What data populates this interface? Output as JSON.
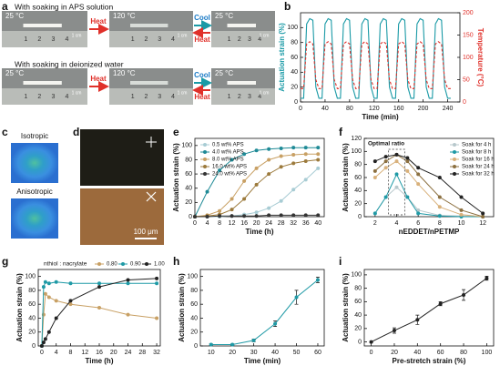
{
  "panel_labels": [
    "a",
    "b",
    "c",
    "d",
    "e",
    "f",
    "g",
    "h",
    "i"
  ],
  "panel_a": {
    "top_title": "With soaking in APS solution",
    "bottom_title": "With soaking in deionized water",
    "cold": "25 °C",
    "hot": "120 °C",
    "heat": "Heat",
    "cool": "Cool",
    "ruler": [
      "1",
      "2",
      "3",
      "4"
    ],
    "scale": "1 cm"
  },
  "panel_c": {
    "top": "Isotropic",
    "bottom": "Anisotropic"
  },
  "panel_d": {
    "scale": "100 μm"
  },
  "chart_data": [
    {
      "type": "line",
      "x_label": "Time (min)",
      "y_label": "Actuation strain (%)",
      "y2_label": "Temperature (°C)",
      "x": [
        0,
        5,
        10,
        15,
        20,
        25,
        30,
        35,
        40,
        45,
        50,
        55,
        60,
        65,
        70,
        75,
        80,
        85,
        90,
        95,
        100,
        105,
        110,
        115,
        120,
        125,
        130,
        135,
        140,
        145,
        150,
        155,
        160,
        165,
        170,
        175,
        180,
        185,
        190,
        195,
        200,
        205,
        210,
        215,
        220,
        225,
        230,
        235,
        240,
        245
      ],
      "xlim": [
        0,
        260
      ],
      "xticks": [
        0,
        40,
        80,
        120,
        160,
        200,
        240
      ],
      "ylim": [
        0,
        120
      ],
      "yticks": [
        0,
        20,
        40,
        60,
        80,
        100
      ],
      "y2lim": [
        0,
        200
      ],
      "y2ticks": [
        0,
        50,
        100,
        150,
        200
      ],
      "markers": false,
      "series": [
        {
          "name": "Actuation strain",
          "color": "#1a9aa6",
          "values": [
            5,
            5,
            105,
            112,
            110,
            20,
            5,
            5,
            105,
            112,
            110,
            20,
            5,
            5,
            105,
            112,
            110,
            20,
            5,
            5,
            105,
            112,
            110,
            20,
            5,
            5,
            105,
            112,
            110,
            20,
            5,
            5,
            105,
            112,
            110,
            20,
            5,
            5,
            105,
            112,
            110,
            20,
            5,
            5,
            105,
            112,
            110,
            20,
            5,
            5
          ]
        },
        {
          "name": "Temperature",
          "color": "#e0302a",
          "dash": true,
          "axis": "y2",
          "values": [
            30,
            30,
            130,
            135,
            130,
            50,
            30,
            30,
            130,
            135,
            130,
            50,
            30,
            30,
            130,
            135,
            130,
            50,
            30,
            30,
            130,
            135,
            130,
            50,
            30,
            30,
            130,
            135,
            130,
            50,
            30,
            30,
            130,
            135,
            130,
            50,
            30,
            30,
            130,
            135,
            130,
            50,
            30,
            30,
            130,
            135,
            130,
            50,
            30,
            30
          ]
        }
      ]
    },
    {
      "type": "line",
      "x_label": "Time (h)",
      "y_label": "Actuation strain (%)",
      "legend": "upper left",
      "markers": true,
      "x": [
        0,
        4,
        8,
        12,
        16,
        20,
        24,
        28,
        32,
        36,
        40
      ],
      "xlim": [
        0,
        42
      ],
      "xticks": [
        0,
        4,
        8,
        12,
        16,
        20,
        24,
        28,
        32,
        36,
        40
      ],
      "ylim": [
        0,
        110
      ],
      "yticks": [
        0,
        20,
        40,
        60,
        80,
        100
      ],
      "series": [
        {
          "name": "0.5 wt% APS",
          "color": "#a8ccd4",
          "values": [
            0,
            0,
            0,
            1,
            3,
            6,
            12,
            22,
            38,
            52,
            68
          ]
        },
        {
          "name": "4.0 wt% APS",
          "color": "#1f8a96",
          "values": [
            0,
            35,
            65,
            80,
            88,
            93,
            95,
            96,
            97,
            97,
            97
          ]
        },
        {
          "name": "8.0 wt% APS",
          "color": "#c8a064",
          "values": [
            0,
            2,
            8,
            25,
            50,
            68,
            80,
            85,
            87,
            88,
            88
          ]
        },
        {
          "name": "16.0 wt% APS",
          "color": "#9c7a3c",
          "values": [
            0,
            1,
            3,
            10,
            25,
            45,
            60,
            70,
            75,
            78,
            80
          ]
        },
        {
          "name": "24.0 wt% APS",
          "color": "#333333",
          "values": [
            0,
            0,
            1,
            1,
            1,
            1,
            2,
            2,
            2,
            2,
            2
          ]
        }
      ]
    },
    {
      "type": "line",
      "x_label": "nEDDET/nPETMP",
      "y_label": "Actuation strain (%)",
      "legend": "upper right",
      "markers": true,
      "annotation": "Optimal ratio",
      "x": [
        2,
        3,
        4,
        5,
        6,
        8,
        10,
        12
      ],
      "xlim": [
        1,
        13
      ],
      "xticks": [
        2,
        4,
        6,
        8,
        10,
        12
      ],
      "ylim": [
        0,
        120
      ],
      "yticks": [
        0,
        20,
        40,
        60,
        80,
        100,
        120
      ],
      "series": [
        {
          "name": "Soak for 4 h",
          "color": "#b8c8cc",
          "values": [
            5,
            30,
            45,
            30,
            10,
            2,
            1,
            0
          ]
        },
        {
          "name": "Soak for 8 h",
          "color": "#1f9aa6",
          "values": [
            5,
            30,
            65,
            30,
            5,
            1,
            0,
            0
          ]
        },
        {
          "name": "Soak for 16 h",
          "color": "#d8b07a",
          "values": [
            60,
            75,
            85,
            70,
            50,
            15,
            3,
            0
          ]
        },
        {
          "name": "Soak for 24 h",
          "color": "#8c7040",
          "values": [
            70,
            85,
            95,
            85,
            65,
            30,
            10,
            0
          ]
        },
        {
          "name": "Soak for 32 h",
          "color": "#222222",
          "values": [
            85,
            92,
            95,
            90,
            75,
            60,
            30,
            5
          ]
        }
      ]
    },
    {
      "type": "line",
      "x_label": "Time (h)",
      "y_label": "Actuation strain (%)",
      "legend": "upper center",
      "legend_title": "nthiol : nacrylate",
      "markers": true,
      "x": [
        0,
        0.5,
        1,
        2,
        4,
        8,
        16,
        24,
        32
      ],
      "xlim": [
        -1,
        33
      ],
      "xticks": [
        0,
        4,
        8,
        12,
        16,
        20,
        24,
        28,
        32
      ],
      "ylim": [
        0,
        110
      ],
      "yticks": [
        0,
        20,
        40,
        60,
        80,
        100
      ],
      "series": [
        {
          "name": "0.80",
          "color": "#c8a064",
          "values": [
            0,
            45,
            75,
            70,
            65,
            60,
            55,
            45,
            40
          ]
        },
        {
          "name": "0.90",
          "color": "#1f9aa6",
          "values": [
            0,
            85,
            92,
            90,
            92,
            90,
            90,
            90,
            90
          ]
        },
        {
          "name": "1.00",
          "color": "#222222",
          "values": [
            0,
            5,
            10,
            20,
            40,
            65,
            85,
            95,
            97
          ]
        }
      ]
    },
    {
      "type": "line",
      "x_label": "Time (min)",
      "y_label": "Actuation strain (%)",
      "markers": true,
      "x": [
        10,
        20,
        30,
        40,
        50,
        60
      ],
      "xlim": [
        5,
        63
      ],
      "xticks": [
        10,
        20,
        30,
        40,
        50,
        60
      ],
      "ylim": [
        0,
        110
      ],
      "yticks": [
        0,
        20,
        40,
        60,
        80,
        100
      ],
      "series": [
        {
          "name": "Actuation strain",
          "color": "#1f9aa6",
          "values": [
            2,
            2,
            8,
            32,
            70,
            95
          ],
          "errors": [
            1,
            1,
            2,
            4,
            10,
            4
          ]
        }
      ]
    },
    {
      "type": "line",
      "x_label": "Pre-stretch strain (%)",
      "y_label": "Actuation strain (%)",
      "markers": true,
      "x": [
        0,
        20,
        40,
        60,
        80,
        100
      ],
      "xlim": [
        -6,
        106
      ],
      "xticks": [
        0,
        20,
        40,
        60,
        80,
        100
      ],
      "ylim": [
        -6,
        108
      ],
      "yticks": [
        0,
        20,
        40,
        60,
        80,
        100
      ],
      "series": [
        {
          "name": "Actuation strain",
          "color": "#222222",
          "values": [
            0,
            17,
            33,
            57,
            70,
            95
          ],
          "errors": [
            1,
            4,
            7,
            3,
            8,
            3
          ]
        }
      ]
    }
  ]
}
